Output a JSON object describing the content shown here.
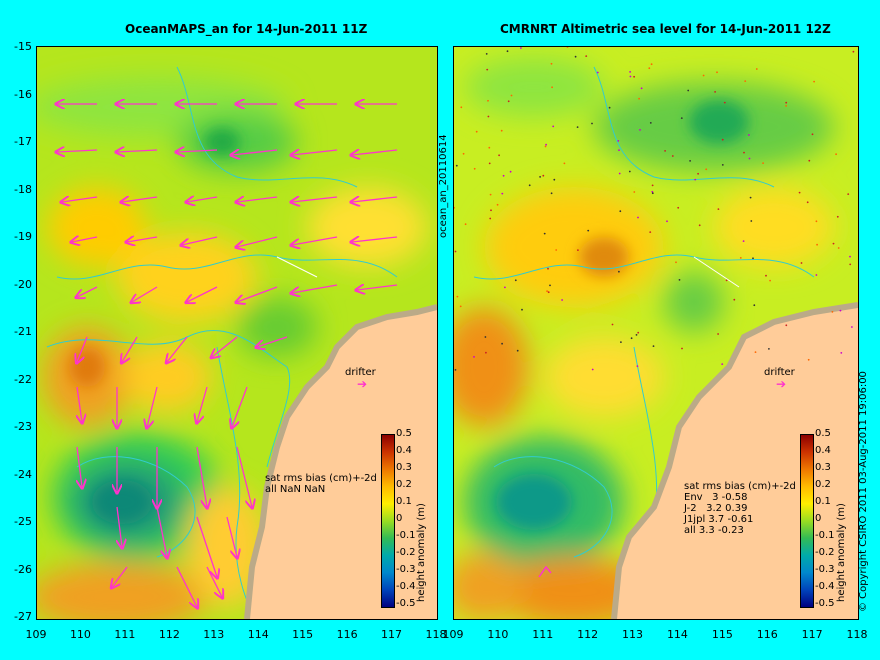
{
  "left_panel": {
    "title": "OceanMAPS_an for 14-Jun-2011 11Z",
    "stats_lines": [
      "sat rms bias (cm)+-2d",
      "all NaN NaN"
    ],
    "drifter_label": "drifter"
  },
  "right_panel": {
    "title": "CMRNRT Altimetric sea level  for 14-Jun-2011 12Z",
    "stats_lines": [
      "sat rms bias (cm)+-2d",
      "Env   3 -0.58",
      "J-2   3.2 0.39",
      "J1jpl 3.7 -0.61",
      "all 3.3 -0.23"
    ],
    "drifter_label": "drifter"
  },
  "side_label": "ocean_an_20110614",
  "colorbar": {
    "label": "height anomaly (m)",
    "ticks": [
      "0.5",
      "0.4",
      "0.3",
      "0.2",
      "0.1",
      "0",
      "-0.1",
      "-0.2",
      "-0.3",
      "-0.4",
      "-0.5"
    ]
  },
  "copyright": "© Copyright CSIRO 2011   03-Aug-2011 19:06:00",
  "y_axis_labels": [
    "-15",
    "-16",
    "-17",
    "-18",
    "-19",
    "-20",
    "-21",
    "-22",
    "-23",
    "-24",
    "-25",
    "-26",
    "-27"
  ],
  "x_axis_labels": [
    "109",
    "110",
    "111",
    "112",
    "113",
    "114",
    "115",
    "116",
    "117",
    "118"
  ],
  "colors": {
    "background": "#00ffff",
    "land": "#ffcc99",
    "coast": "#bbaa88",
    "vector": "#ff33cc",
    "contour": "#33cccc"
  }
}
